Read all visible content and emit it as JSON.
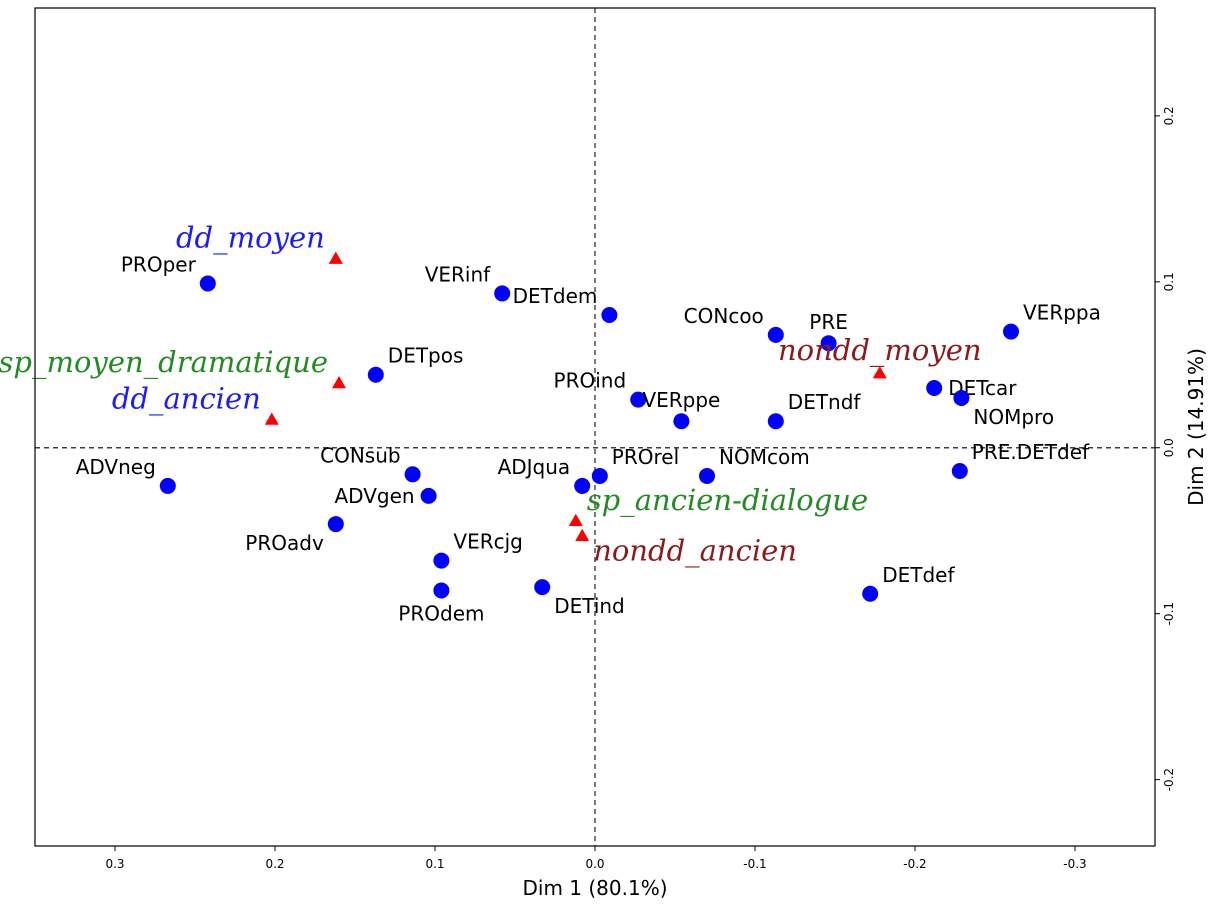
{
  "chart_data": {
    "type": "scatter",
    "xlabel": "Dim 1 (80.1%)",
    "ylabel": "Dim 2 (14.91%)",
    "xlim": [
      0.35,
      -0.35
    ],
    "ylim": [
      -0.24,
      0.265
    ],
    "x_axis_reversed": true,
    "x_ticks": [
      {
        "value": 0.3,
        "label": "0.3"
      },
      {
        "value": 0.2,
        "label": "0.2"
      },
      {
        "value": 0.1,
        "label": "0.1"
      },
      {
        "value": 0.0,
        "label": "0.0"
      },
      {
        "value": -0.1,
        "label": "-0.1"
      },
      {
        "value": -0.2,
        "label": "-0.2"
      },
      {
        "value": -0.3,
        "label": "-0.3"
      }
    ],
    "y_ticks": [
      {
        "value": 0.2,
        "label": "0.2"
      },
      {
        "value": 0.1,
        "label": "0.1"
      },
      {
        "value": 0.0,
        "label": "0.0"
      },
      {
        "value": -0.1,
        "label": "-0.1"
      },
      {
        "value": -0.2,
        "label": "-0.2"
      }
    ],
    "reference_lines": [
      "x=0",
      "y=0"
    ],
    "variables": {
      "marker": "circle",
      "color": "#0000ff",
      "points": [
        {
          "label": "PROper",
          "x": 0.242,
          "y": 0.099,
          "label_anchor": "upper-left"
        },
        {
          "label": "VERinf",
          "x": 0.058,
          "y": 0.093,
          "label_anchor": "upper-left"
        },
        {
          "label": "DETdem",
          "x": -0.009,
          "y": 0.08,
          "label_anchor": "upper-left"
        },
        {
          "label": "CONcoo",
          "x": -0.113,
          "y": 0.068,
          "label_anchor": "upper-left"
        },
        {
          "label": "PRE",
          "x": -0.146,
          "y": 0.063,
          "label_anchor": "upper-center"
        },
        {
          "label": "VERppa",
          "x": -0.26,
          "y": 0.07,
          "label_anchor": "upper-right"
        },
        {
          "label": "DETpos",
          "x": 0.137,
          "y": 0.044,
          "label_anchor": "upper-right"
        },
        {
          "label": "PROind",
          "x": -0.027,
          "y": 0.029,
          "label_anchor": "upper-left"
        },
        {
          "label": "DETcar",
          "x": -0.212,
          "y": 0.036,
          "label_anchor": "right"
        },
        {
          "label": "VERppe",
          "x": -0.054,
          "y": 0.016,
          "label_anchor": "upper-center"
        },
        {
          "label": "DETndf",
          "x": -0.113,
          "y": 0.016,
          "label_anchor": "upper-right"
        },
        {
          "label": "NOMpro",
          "x": -0.229,
          "y": 0.03,
          "label_anchor": "lower-right"
        },
        {
          "label": "ADVneg",
          "x": 0.267,
          "y": -0.023,
          "label_anchor": "upper-left"
        },
        {
          "label": "CONsub",
          "x": 0.114,
          "y": -0.016,
          "label_anchor": "upper-left"
        },
        {
          "label": "ADVgen",
          "x": 0.104,
          "y": -0.029,
          "label_anchor": "left"
        },
        {
          "label": "ADJqua",
          "x": 0.008,
          "y": -0.023,
          "label_anchor": "upper-left"
        },
        {
          "label": "PROrel",
          "x": -0.003,
          "y": -0.017,
          "label_anchor": "upper-right"
        },
        {
          "label": "NOMcom",
          "x": -0.07,
          "y": -0.017,
          "label_anchor": "upper-right"
        },
        {
          "label": "PRE.DETdef",
          "x": -0.228,
          "y": -0.014,
          "label_anchor": "upper-right"
        },
        {
          "label": "PROadv",
          "x": 0.162,
          "y": -0.046,
          "label_anchor": "lower-left"
        },
        {
          "label": "VERcjg",
          "x": 0.096,
          "y": -0.068,
          "label_anchor": "upper-right"
        },
        {
          "label": "PROdem",
          "x": 0.096,
          "y": -0.086,
          "label_anchor": "lower-center"
        },
        {
          "label": "DETind",
          "x": 0.033,
          "y": -0.084,
          "label_anchor": "lower-right"
        },
        {
          "label": "DETdef",
          "x": -0.172,
          "y": -0.088,
          "label_anchor": "upper-right"
        }
      ]
    },
    "groups": {
      "marker": "triangle",
      "marker_color": "#ff0000",
      "points": [
        {
          "label": "dd_moyen",
          "x": 0.162,
          "y": 0.114,
          "color": "#1a1aff",
          "label_anchor": "upper-left"
        },
        {
          "label": "sp_moyen_dramatique",
          "x": 0.16,
          "y": 0.039,
          "color": "#228b22",
          "label_anchor": "upper-left"
        },
        {
          "label": "dd_ancien",
          "x": 0.202,
          "y": 0.017,
          "color": "#1a1aff",
          "label_anchor": "upper-left"
        },
        {
          "label": "nondd_moyen",
          "x": -0.178,
          "y": 0.045,
          "color": "#8b1a1a",
          "label_anchor": "upper-center"
        },
        {
          "label": "sp_ancien-dialogue",
          "x": 0.012,
          "y": -0.044,
          "color": "#228b22",
          "label_anchor": "upper-right"
        },
        {
          "label": "nondd_ancien",
          "x": 0.008,
          "y": -0.053,
          "color": "#8b1a1a",
          "label_anchor": "lower-right"
        }
      ]
    }
  }
}
